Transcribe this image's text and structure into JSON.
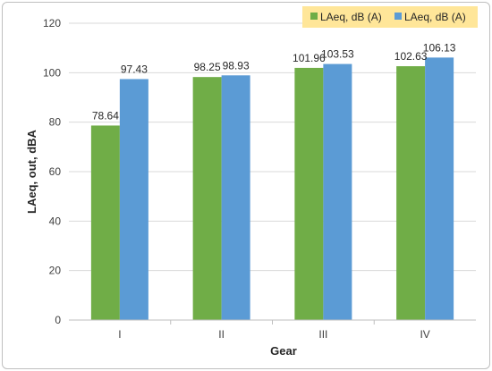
{
  "chart_data": {
    "type": "bar",
    "categories": [
      "I",
      "II",
      "III",
      "IV"
    ],
    "series": [
      {
        "name": "LAeq, dB (A)",
        "values": [
          78.64,
          98.25,
          101.96,
          102.63
        ],
        "color": "#70ad47"
      },
      {
        "name": "LAeq, dB (A)",
        "values": [
          97.43,
          98.93,
          103.53,
          106.13
        ],
        "color": "#5b9bd5"
      }
    ],
    "data_labels": [
      [
        "78.64",
        "98.25",
        "101.96",
        "102.63"
      ],
      [
        "97.43",
        "98.93",
        "103.53",
        "106.13"
      ]
    ],
    "xlabel": "Gear",
    "ylabel": "LAeq, out, dBA",
    "ylim": [
      0,
      120
    ],
    "yticks": [
      0,
      20,
      40,
      60,
      80,
      100,
      120
    ],
    "grid": true,
    "legend_position": "top-right",
    "legend_background": "#ffe699"
  }
}
